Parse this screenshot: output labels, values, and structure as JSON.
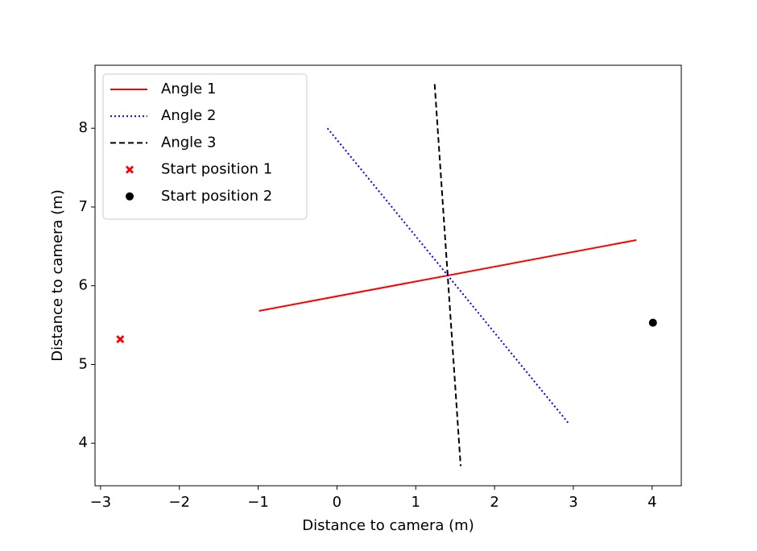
{
  "chart_data": {
    "type": "line",
    "xlabel": "Distance to camera (m)",
    "ylabel": "Distance to camera (m)",
    "xlim": [
      -3.07,
      4.37
    ],
    "ylim": [
      3.46,
      8.8
    ],
    "xticks": [
      {
        "value": -3,
        "label": "−3"
      },
      {
        "value": -2,
        "label": "−2"
      },
      {
        "value": -1,
        "label": "−1"
      },
      0,
      1,
      2,
      3,
      4
    ],
    "yticks": [
      4,
      5,
      6,
      7,
      8
    ],
    "grid": false,
    "legend": "upper left",
    "series": [
      {
        "name": "Angle 1",
        "color": "#ff0000",
        "linestyle": "solid",
        "x": [
          -0.99,
          3.8
        ],
        "values": [
          5.68,
          6.58
        ]
      },
      {
        "name": "Angle 2",
        "color": "#0000ff",
        "linestyle": "dotted",
        "x": [
          -0.12,
          2.95
        ],
        "values": [
          8.0,
          4.24
        ]
      },
      {
        "name": "Angle 3",
        "color": "#000000",
        "linestyle": "dashed",
        "x": [
          1.24,
          1.57
        ],
        "values": [
          8.56,
          3.71
        ]
      },
      {
        "name": "Start position 1",
        "color": "#ff0000",
        "marker": "X",
        "x": [
          -2.75
        ],
        "values": [
          5.32
        ]
      },
      {
        "name": "Start position 2",
        "color": "#000000",
        "marker": "o",
        "x": [
          4.01
        ],
        "values": [
          5.53
        ]
      }
    ]
  }
}
